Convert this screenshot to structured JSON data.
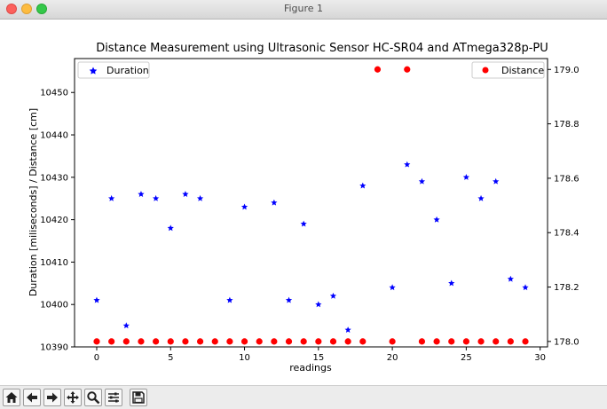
{
  "window": {
    "title": "Figure 1"
  },
  "toolbar": {
    "buttons": [
      {
        "name": "home-button",
        "icon": "home-icon"
      },
      {
        "name": "back-button",
        "icon": "arrow-left-icon"
      },
      {
        "name": "forward-button",
        "icon": "arrow-right-icon"
      },
      {
        "name": "pan-button",
        "icon": "move-icon"
      },
      {
        "name": "zoom-button",
        "icon": "zoom-icon"
      },
      {
        "name": "configure-subplots-button",
        "icon": "sliders-icon"
      },
      {
        "name": "save-button",
        "icon": "save-icon"
      }
    ]
  },
  "chart_data": {
    "type": "scatter",
    "title": "Distance Measurement using Ultrasonic Sensor HC-SR04 and ATmega328p-PU",
    "xlabel": "readings",
    "ylabel": "Duration [miliseconds] / Distance [cm]",
    "xlim": [
      -1.5,
      30.5
    ],
    "xticks": [
      0,
      5,
      10,
      15,
      20,
      25,
      30
    ],
    "ylim_left": [
      10390,
      10458
    ],
    "yticks_left": [
      10390,
      10400,
      10410,
      10420,
      10430,
      10440,
      10450
    ],
    "ylim_right": [
      177.98,
      179.04
    ],
    "yticks_right": [
      "178.0",
      "178.2",
      "178.4",
      "178.6",
      "178.8",
      "179.0"
    ],
    "legend_left": {
      "label": "Duration",
      "position": "top-left"
    },
    "legend_right": {
      "label": "Distance",
      "position": "top-right"
    },
    "series": [
      {
        "name": "Duration",
        "axis": "left",
        "marker": "star",
        "color": "#0000ff",
        "x": [
          0,
          1,
          2,
          3,
          4,
          5,
          6,
          7,
          9,
          10,
          12,
          13,
          14,
          15,
          16,
          17,
          18,
          20,
          21,
          22,
          23,
          24,
          25,
          26,
          27,
          28,
          29
        ],
        "y": [
          10401,
          10425,
          10395,
          10426,
          10425,
          10418,
          10426,
          10425,
          10401,
          10423,
          10424,
          10401,
          10419,
          10400,
          10402,
          10394,
          10428,
          10404,
          10433,
          10429,
          10420,
          10405,
          10430,
          10425,
          10429,
          10406,
          10404
        ]
      },
      {
        "name": "Distance",
        "axis": "right",
        "marker": "circle",
        "color": "#ff0000",
        "x": [
          0,
          1,
          2,
          3,
          4,
          5,
          6,
          7,
          8,
          9,
          10,
          11,
          12,
          13,
          14,
          15,
          16,
          17,
          18,
          19,
          20,
          21,
          22,
          23,
          24,
          25,
          26,
          27,
          28,
          29
        ],
        "y": [
          178.0,
          178.0,
          178.0,
          178.0,
          178.0,
          178.0,
          178.0,
          178.0,
          178.0,
          178.0,
          178.0,
          178.0,
          178.0,
          178.0,
          178.0,
          178.0,
          178.0,
          178.0,
          178.0,
          179.0,
          178.0,
          179.0,
          178.0,
          178.0,
          178.0,
          178.0,
          178.0,
          178.0,
          178.0,
          178.0
        ]
      }
    ]
  }
}
